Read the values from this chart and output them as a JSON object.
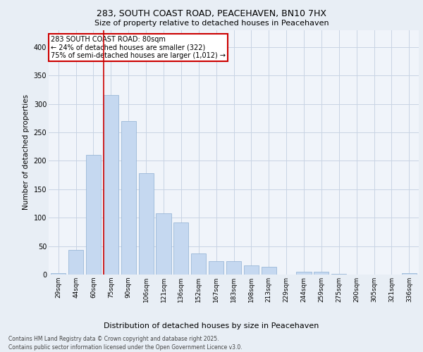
{
  "title1": "283, SOUTH COAST ROAD, PEACEHAVEN, BN10 7HX",
  "title2": "Size of property relative to detached houses in Peacehaven",
  "xlabel": "Distribution of detached houses by size in Peacehaven",
  "ylabel": "Number of detached properties",
  "categories": [
    "29sqm",
    "44sqm",
    "60sqm",
    "75sqm",
    "90sqm",
    "106sqm",
    "121sqm",
    "136sqm",
    "152sqm",
    "167sqm",
    "183sqm",
    "198sqm",
    "213sqm",
    "229sqm",
    "244sqm",
    "259sqm",
    "275sqm",
    "290sqm",
    "305sqm",
    "321sqm",
    "336sqm"
  ],
  "values": [
    3,
    43,
    210,
    315,
    270,
    178,
    108,
    91,
    37,
    23,
    23,
    16,
    13,
    0,
    5,
    5,
    1,
    0,
    0,
    0,
    3
  ],
  "bar_color": "#c5d8f0",
  "bar_edge_color": "#9ab8d8",
  "vline_x_index": 3,
  "vline_color": "#cc0000",
  "annotation_text": "283 SOUTH COAST ROAD: 80sqm\n← 24% of detached houses are smaller (322)\n75% of semi-detached houses are larger (1,012) →",
  "annotation_box_color": "#ffffff",
  "annotation_box_edge_color": "#cc0000",
  "footer1": "Contains HM Land Registry data © Crown copyright and database right 2025.",
  "footer2": "Contains public sector information licensed under the Open Government Licence v3.0.",
  "bg_color": "#e8eef5",
  "plot_bg_color": "#f0f4fa",
  "grid_color": "#c8d4e4",
  "ylim": [
    0,
    430
  ],
  "yticks": [
    0,
    50,
    100,
    150,
    200,
    250,
    300,
    350,
    400
  ]
}
